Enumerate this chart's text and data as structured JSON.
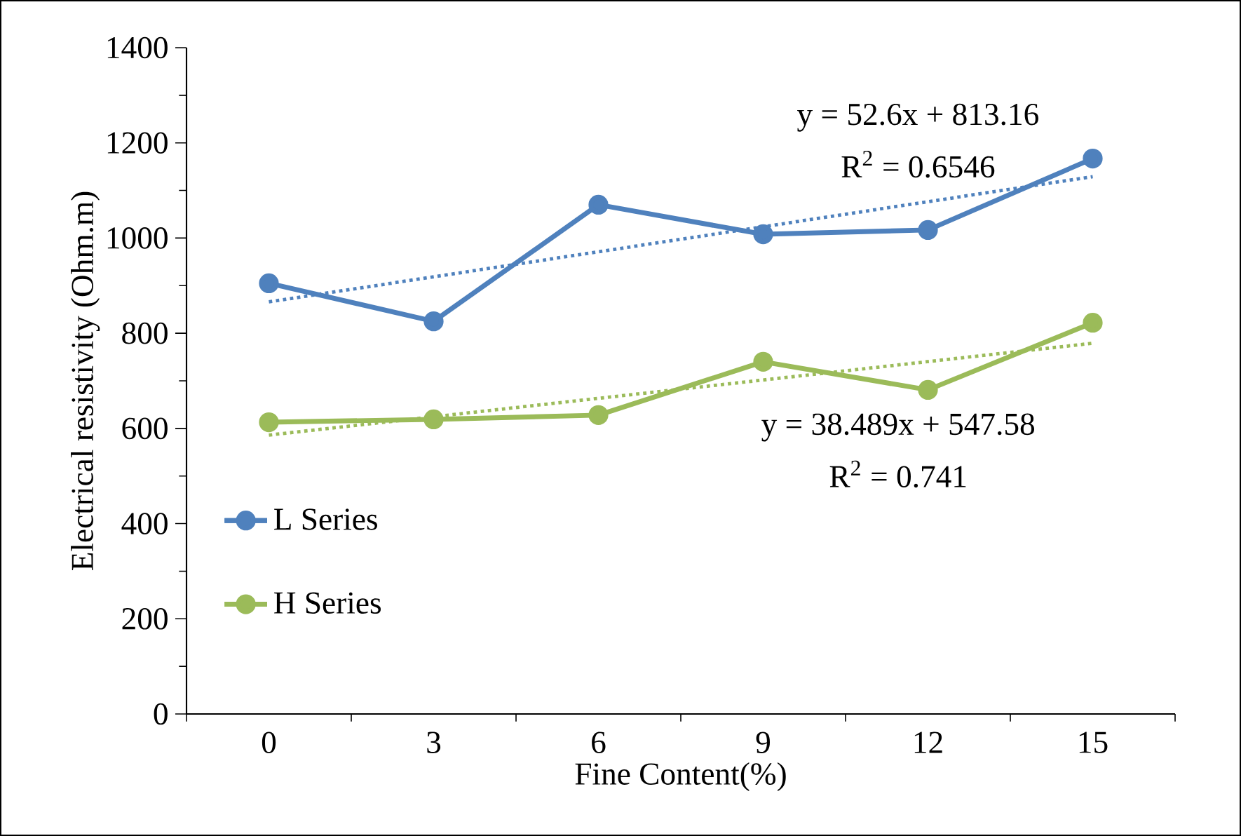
{
  "chart_data": {
    "type": "line",
    "xlabel": "Fine Content(%)",
    "ylabel": "Electrical resistivity (Ohm.m)",
    "categories": [
      "0",
      "3",
      "6",
      "9",
      "12",
      "15"
    ],
    "series": [
      {
        "name": "L Series",
        "color": "#4f81bd",
        "values": [
          905,
          825,
          1070,
          1008,
          1017,
          1167
        ],
        "marker": "circle",
        "line_style": "solid"
      },
      {
        "name": "H Series",
        "color": "#9bbb59",
        "values": [
          613,
          619,
          628,
          740,
          681,
          822
        ],
        "marker": "circle",
        "line_style": "solid"
      },
      {
        "color": "#4f81bd",
        "x": [
          "0",
          "15"
        ],
        "values": [
          866,
          1129
        ],
        "marker": "none",
        "line_style": "dotted"
      },
      {
        "color": "#9bbb59",
        "x": [
          "0",
          "15"
        ],
        "values": [
          586,
          779
        ],
        "marker": "none",
        "line_style": "dotted"
      }
    ],
    "ylim": [
      0,
      1400
    ],
    "yticks": [
      0,
      200,
      400,
      600,
      800,
      1000,
      1200,
      1400
    ],
    "annotations": [
      "y = 52.6x + 813.16",
      "R$^{2}$ = 0.6546",
      "y = 38.489x + 547.58",
      "R$^{2}$ = 0.741"
    ],
    "legend": "left",
    "grid": false
  }
}
